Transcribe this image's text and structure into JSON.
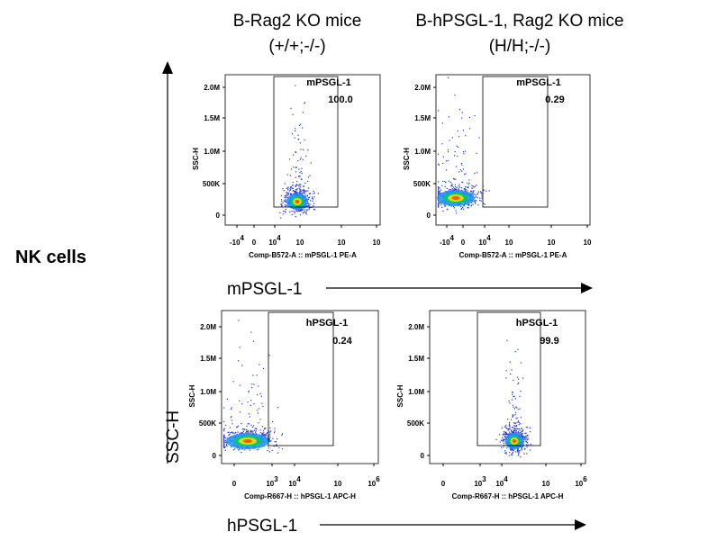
{
  "column_titles": [
    {
      "line1": "B-Rag2 KO mice",
      "line2": "(+/+;-/-)"
    },
    {
      "line1": "B-hPSGL-1, Rag2 KO mice",
      "line2": "(H/H;-/-)"
    }
  ],
  "row_label": "NK cells",
  "y_axis_label": "SSC-H",
  "x_axis_labels": [
    "mPSGL-1",
    "hPSGL-1"
  ],
  "panels": [
    {
      "gate_label": "mPSGL-1",
      "gate_value": "100.0",
      "y_title": "SSC-H",
      "x_title": "Comp-B572-A :: mPSGL-1 PE-A",
      "y_ticks": [
        "2.0M",
        "1.5M",
        "1.0M",
        "500K",
        "0"
      ],
      "x_ticks": [
        {
          "base": "-10",
          "exp": "4"
        },
        {
          "base": "0"
        },
        {
          "base": "10",
          "exp": "4"
        },
        {
          "base": "10"
        },
        {
          "base": "10"
        },
        {
          "base": "10"
        }
      ]
    },
    {
      "gate_label": "mPSGL-1",
      "gate_value": "0.29",
      "y_title": "SSC-H",
      "x_title": "Comp-B572-A :: mPSGL-1 PE-A",
      "y_ticks": [
        "2.0M",
        "1.5M",
        "1.0M",
        "500K",
        "0"
      ],
      "x_ticks": [
        {
          "base": "-10",
          "exp": "4"
        },
        {
          "base": "0"
        },
        {
          "base": "10",
          "exp": "4"
        },
        {
          "base": "10"
        },
        {
          "base": "10"
        },
        {
          "base": "10"
        }
      ]
    },
    {
      "gate_label": "hPSGL-1",
      "gate_value": "0.24",
      "y_title": "SSC-H",
      "x_title": "Comp-R667-H :: hPSGL-1 APC-H",
      "y_ticks": [
        "2.0M",
        "1.5M",
        "1.0M",
        "500K",
        "0"
      ],
      "x_ticks": [
        {
          "base": "0"
        },
        {
          "base": "10",
          "exp": "3"
        },
        {
          "base": "10",
          "exp": "4"
        },
        {
          "base": "10"
        },
        {
          "base": "10",
          "exp": "6"
        }
      ]
    },
    {
      "gate_label": "hPSGL-1",
      "gate_value": "99.9",
      "y_title": "SSC-H",
      "x_title": "Comp-R667-H :: hPSGL-1 APC-H",
      "y_ticks": [
        "2.0M",
        "1.5M",
        "1.0M",
        "500K",
        "0"
      ],
      "x_ticks": [
        {
          "base": "0"
        },
        {
          "base": "10",
          "exp": "3"
        },
        {
          "base": "10",
          "exp": "4"
        },
        {
          "base": "10"
        },
        {
          "base": "10",
          "exp": "6"
        }
      ]
    }
  ]
}
